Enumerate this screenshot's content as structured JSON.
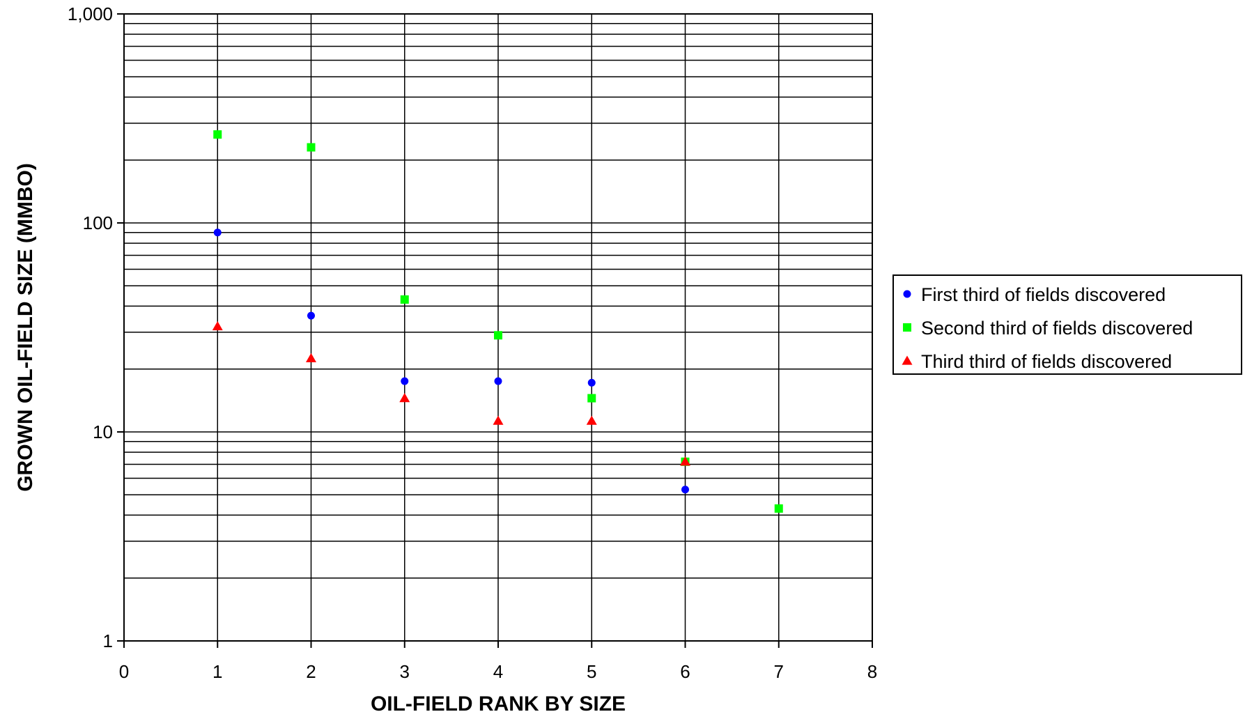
{
  "chart_data": {
    "type": "scatter",
    "title": "",
    "xlabel": "OIL-FIELD RANK BY SIZE",
    "ylabel": "GROWN OIL-FIELD SIZE (MMBO)",
    "xlim": [
      0,
      8
    ],
    "ylim": [
      1,
      1000
    ],
    "y_scale": "log",
    "x_ticks": [
      0,
      1,
      2,
      3,
      4,
      5,
      6,
      7,
      8
    ],
    "x_tick_labels": [
      "0",
      "1",
      "2",
      "3",
      "4",
      "5",
      "6",
      "7",
      "8"
    ],
    "y_ticks": [
      1,
      10,
      100,
      1000
    ],
    "y_tick_labels": [
      "1",
      "10",
      "100",
      "1,000"
    ],
    "grid": true,
    "legend_position": "right",
    "series": [
      {
        "name": "First third of fields discovered",
        "marker": "circle",
        "color": "#0000ff",
        "x": [
          1,
          2,
          3,
          4,
          5,
          6
        ],
        "y": [
          90,
          36,
          17.5,
          17.5,
          17.2,
          5.3
        ]
      },
      {
        "name": "Second third of fields discovered",
        "marker": "square",
        "color": "#00ff00",
        "x": [
          1,
          2,
          3,
          4,
          5,
          6,
          7
        ],
        "y": [
          265,
          230,
          43,
          29,
          14.5,
          7.2,
          4.3
        ]
      },
      {
        "name": "Third third of fields discovered",
        "marker": "triangle",
        "color": "#ff0000",
        "x": [
          1,
          2,
          3,
          4,
          5,
          6
        ],
        "y": [
          32,
          22.5,
          14.5,
          11.3,
          11.3,
          7.2
        ]
      }
    ]
  }
}
